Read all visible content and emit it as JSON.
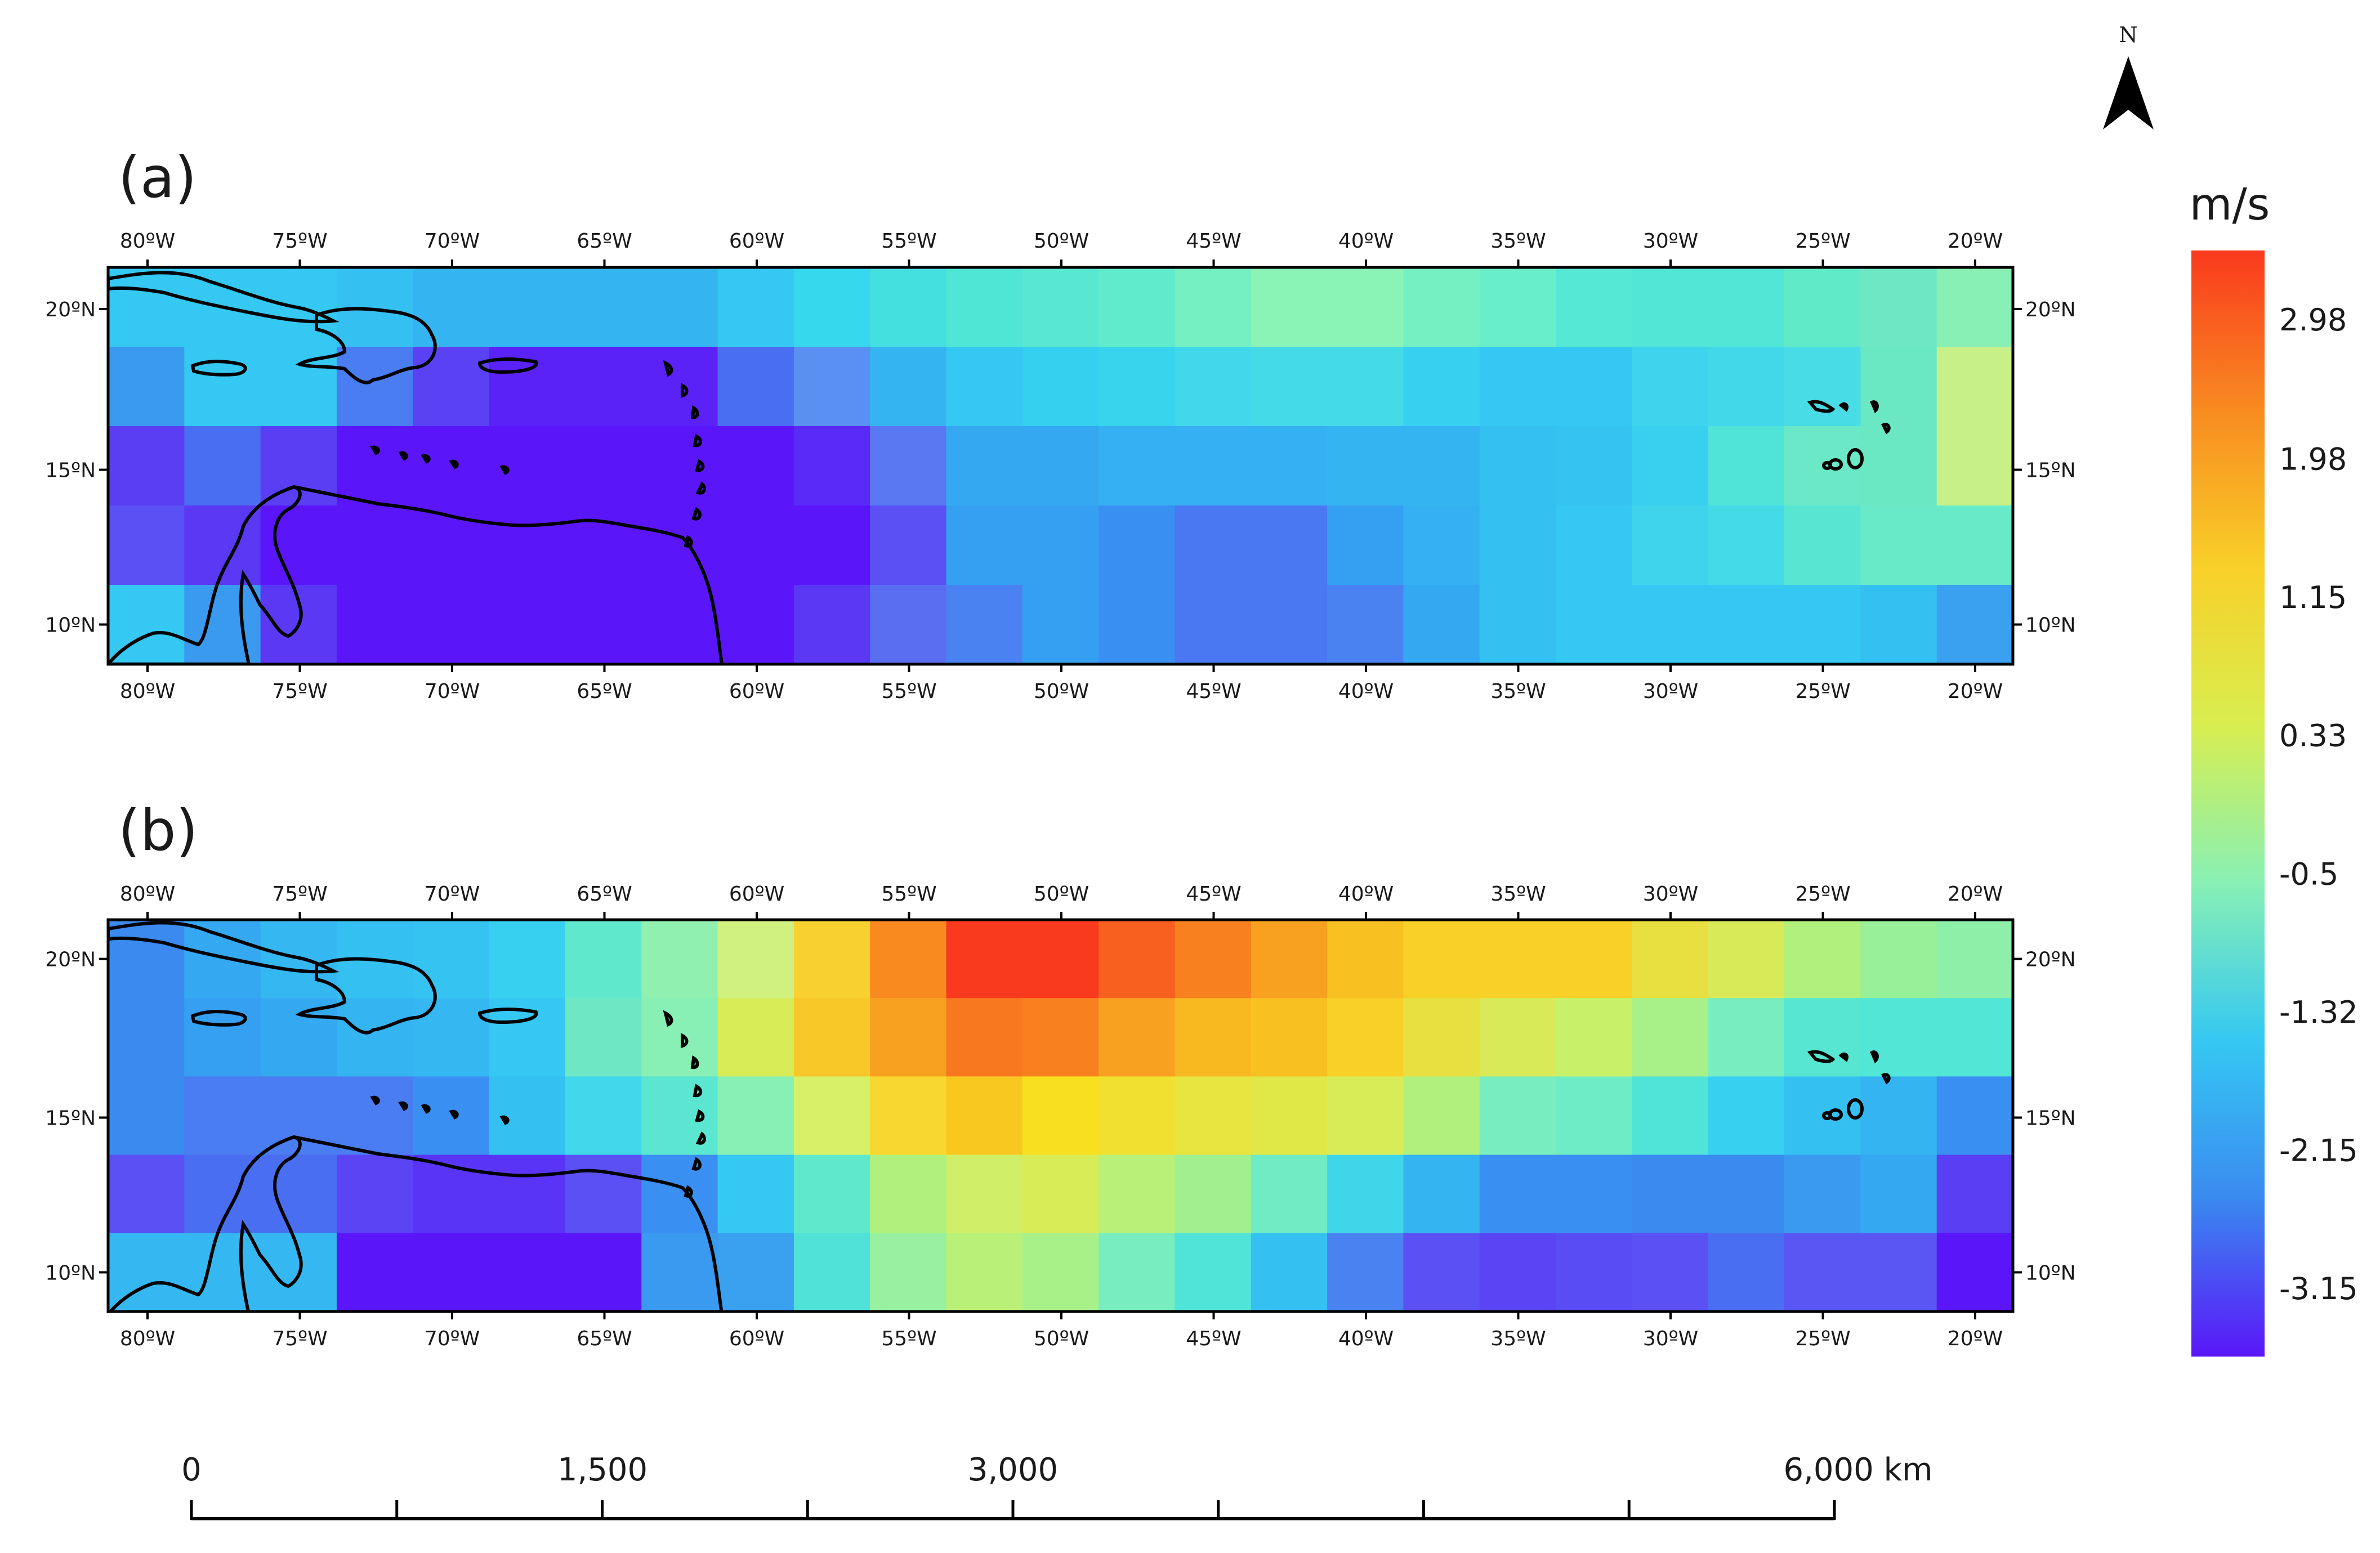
{
  "panels": [
    {
      "label": "(a)",
      "top_lon_labels": [
        "80ºW",
        "75ºW",
        "70ºW",
        "65ºW",
        "60ºW",
        "55ºW",
        "50ºW",
        "45ºW",
        "40ºW",
        "35ºW",
        "30ºW",
        "25ºW",
        "20ºW"
      ],
      "bottom_lon_labels": [
        "80ºW",
        "75ºW",
        "70ºW",
        "65ºW",
        "60ºW",
        "55ºW",
        "50ºW",
        "45ºW",
        "40ºW",
        "35ºW",
        "30ºW",
        "25ºW",
        "20ºW"
      ],
      "left_lat_labels": [
        "20ºN",
        "15ºN",
        "10ºN"
      ],
      "right_lat_labels": [
        "20ºN",
        "15ºN",
        "10ºN"
      ],
      "grid_rows_north_to_south": [
        [
          "#35c8f2",
          "#35c8f2",
          "#35c8f2",
          "#35c0f2",
          "#35b4f2",
          "#35b4f2",
          "#35b4f2",
          "#35b4f2",
          "#35c8f2",
          "#35d8ec",
          "#44e0e0",
          "#50e6d6",
          "#58e8d2",
          "#60eccc",
          "#74f0c2",
          "#8af4b6",
          "#8af4b6",
          "#74f0c2",
          "#68eec8",
          "#55e8d4",
          "#52e6d6",
          "#52e6d6",
          "#60eac8",
          "#6ee8c4",
          "#88f0b4"
        ],
        [
          "#3a9af0",
          "#35c8f2",
          "#35c8f2",
          "#4a7cf2",
          "#5a42f4",
          "#5a22f6",
          "#5a22f6",
          "#5a22f6",
          "#4a6ef2",
          "#5a90f2",
          "#35b4f2",
          "#35c8f2",
          "#35d0f0",
          "#38d4ee",
          "#40d8ea",
          "#44dae8",
          "#44dae8",
          "#38d0f0",
          "#35c8f2",
          "#35c8f2",
          "#3ed4ee",
          "#42d8ea",
          "#48dce6",
          "#6ae8c4",
          "#c8f088"
        ],
        [
          "#5a3ef4",
          "#4a6ef2",
          "#5a3ef4",
          "#5a16f8",
          "#5a16f8",
          "#5a16f8",
          "#5a16f8",
          "#5a16f8",
          "#5a16f8",
          "#5a2af6",
          "#5a78f2",
          "#35a8f2",
          "#35a8f2",
          "#35b0f2",
          "#35b0f2",
          "#35b0f2",
          "#35b4f2",
          "#35b4f2",
          "#35c0f2",
          "#35c4f2",
          "#38d0ee",
          "#50e4d8",
          "#6ae8c8",
          "#6ae8c4",
          "#c8f088"
        ],
        [
          "#5a50f4",
          "#5a38f4",
          "#5a16f8",
          "#5a16f8",
          "#5a16f8",
          "#5a16f8",
          "#5a16f8",
          "#5a16f8",
          "#5a16f8",
          "#5a16f8",
          "#5a50f4",
          "#35a0f2",
          "#35a0f2",
          "#3a90f2",
          "#4a78f2",
          "#4a78f2",
          "#35a0f2",
          "#35b0f2",
          "#35c0f2",
          "#35c8f2",
          "#40d4ec",
          "#44dae8",
          "#58e6d2",
          "#68eac8",
          "#68eac8"
        ],
        [
          "#35c8f2",
          "#3a9af0",
          "#5a38f4",
          "#5a16f8",
          "#5a16f8",
          "#5a16f8",
          "#5a16f8",
          "#5a16f8",
          "#5a16f8",
          "#5a38f4",
          "#5a6ef2",
          "#4a82f2",
          "#35a0f2",
          "#3a90f2",
          "#4a78f2",
          "#4a78f2",
          "#4a82f2",
          "#35a8f2",
          "#35c0f2",
          "#35c8f2",
          "#35c8f2",
          "#35c8f2",
          "#35c8f2",
          "#35c0f2",
          "#3aa0f0"
        ]
      ]
    },
    {
      "label": "(b)",
      "top_lon_labels": [
        "80ºW",
        "75ºW",
        "70ºW",
        "65ºW",
        "60ºW",
        "55ºW",
        "50ºW",
        "45ºW",
        "40ºW",
        "35ºW",
        "30ºW",
        "25ºW",
        "20ºW"
      ],
      "bottom_lon_labels": [
        "80ºW",
        "75ºW",
        "70ºW",
        "65ºW",
        "60ºW",
        "55ºW",
        "50ºW",
        "45ºW",
        "40ºW",
        "35ºW",
        "30ºW",
        "25ºW",
        "20ºW"
      ],
      "left_lat_labels": [
        "20ºN",
        "15ºN",
        "10ºN"
      ],
      "right_lat_labels": [
        "20ºN",
        "15ºN",
        "10ºN"
      ],
      "grid_rows_north_to_south": [
        [
          "#3a8af0",
          "#35a8f2",
          "#35b8f2",
          "#35c0f2",
          "#35c4f2",
          "#38d0f0",
          "#60e8cc",
          "#90f0b0",
          "#d0f080",
          "#f8d030",
          "#f88a20",
          "#fa3a1e",
          "#fa3a1e",
          "#f86020",
          "#f8801e",
          "#f8a020",
          "#f8c020",
          "#f8d028",
          "#f8d028",
          "#f8d028",
          "#e8e040",
          "#d8ea58",
          "#b0f07c",
          "#98f098",
          "#8ef0a8"
        ],
        [
          "#3a8af0",
          "#35a0f2",
          "#35a8f2",
          "#35b4f2",
          "#35b8f2",
          "#35c8f2",
          "#6ee8c4",
          "#88f0b4",
          "#d8ec58",
          "#f8c828",
          "#f8a020",
          "#f87820",
          "#f8801e",
          "#f8a020",
          "#f8b820",
          "#f8c020",
          "#f8d028",
          "#e8e040",
          "#d8ea58",
          "#c8f068",
          "#a8f088",
          "#78eec0",
          "#56e6d2",
          "#52e6d6",
          "#52e6d6"
        ],
        [
          "#3a8af0",
          "#4a7cf2",
          "#4a7cf2",
          "#4a7cf2",
          "#3a90f2",
          "#35c0f2",
          "#40d8ea",
          "#5ae6d0",
          "#88f0b4",
          "#d8f068",
          "#f8d830",
          "#f8c820",
          "#f8e020",
          "#f0e030",
          "#e8e440",
          "#e0e848",
          "#d8ec58",
          "#b0f07c",
          "#78eec0",
          "#6eecc6",
          "#50e4d8",
          "#38d0f0",
          "#35c0f2",
          "#35b4f2",
          "#3a90f2"
        ],
        [
          "#5a50f4",
          "#4a6ef2",
          "#4a6ef2",
          "#5a44f4",
          "#5a34f6",
          "#5a34f6",
          "#5a50f4",
          "#3a90f2",
          "#35c8f2",
          "#60e8cc",
          "#b0f07c",
          "#d0ee68",
          "#d8ec58",
          "#b8f078",
          "#a0f090",
          "#70ecc4",
          "#40d6ea",
          "#35b4f2",
          "#3a90f2",
          "#3a90f2",
          "#3a8af0",
          "#3a8af0",
          "#3a9af0",
          "#35a8f2",
          "#5a3ef4"
        ],
        [
          "#35b8f2",
          "#35b8f2",
          "#35b8f2",
          "#5a16f8",
          "#5a16f8",
          "#5a16f8",
          "#5a16f8",
          "#3a9af0",
          "#3aa0f0",
          "#50e2d8",
          "#98f0a0",
          "#b8f078",
          "#a8f088",
          "#78eec0",
          "#50e4d8",
          "#35c0f2",
          "#4a82f2",
          "#5a50f4",
          "#5a44f4",
          "#5a4cf4",
          "#5a50f4",
          "#4a6ef2",
          "#5a56f4",
          "#5a56f4",
          "#5a16f8"
        ]
      ]
    }
  ],
  "colorbar": {
    "title": "m/s",
    "tick_labels": [
      "2.98",
      "1.98",
      "1.15",
      "0.33",
      "-0.5",
      "-1.32",
      "-2.15",
      "-3.15"
    ],
    "gradient_top_to_bottom": [
      "#fa3a1e",
      "#f88a20",
      "#f8d028",
      "#d8ee50",
      "#88f0b4",
      "#35c8f2",
      "#3a8af0",
      "#5a16f8"
    ]
  },
  "north_arrow": {
    "label": "N"
  },
  "scale_bar": {
    "labels": [
      "0",
      "1,500",
      "3,000",
      "6,000 km"
    ]
  }
}
